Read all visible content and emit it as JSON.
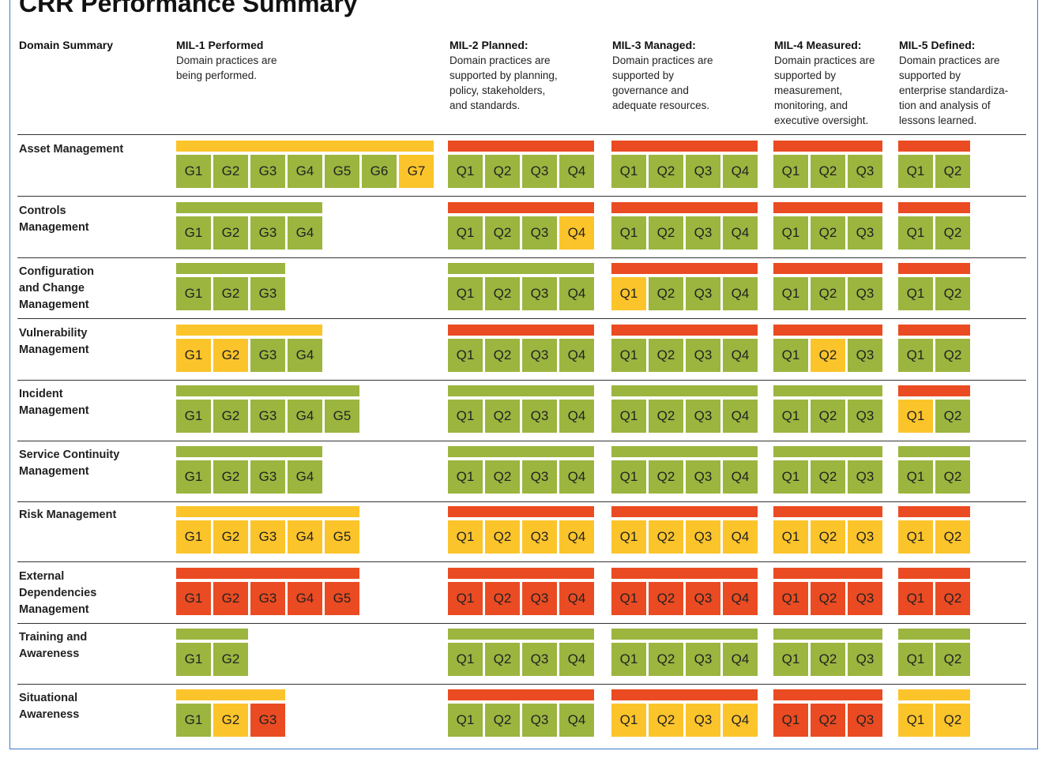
{
  "title": "CRR Performance Summary",
  "colors": {
    "green": "#9bb53f",
    "yellow": "#fcc42b",
    "red": "#ea4b22",
    "frame": "#3a7cc4"
  },
  "domain_header": "Domain Summary",
  "mil_headers": [
    {
      "title": "MIL-1 Performed",
      "desc": "Domain practices are\nbeing performed."
    },
    {
      "title": "MIL-2 Planned:",
      "desc": "Domain practices are\nsupported by planning,\npolicy, stakeholders,\nand standards."
    },
    {
      "title": "MIL-3 Managed:",
      "desc": "Domain practices are\nsupported by\ngovernance and\nadequate resources."
    },
    {
      "title": "MIL-4 Measured:",
      "desc": "Domain practices are\nsupported by\nmeasurement,\nmonitoring, and\nexecutive oversight."
    },
    {
      "title": "MIL-5 Defined:",
      "desc": "Domain practices  are\nsupported by\nenterprise standardiza-\ntion and analysis of\nlessons learned."
    }
  ],
  "domains": [
    {
      "name": "Asset Management",
      "mils": [
        {
          "bar": "yellow",
          "cells": [
            [
              "G1",
              "green"
            ],
            [
              "G2",
              "green"
            ],
            [
              "G3",
              "green"
            ],
            [
              "G4",
              "green"
            ],
            [
              "G5",
              "green"
            ],
            [
              "G6",
              "green"
            ],
            [
              "G7",
              "yellow"
            ]
          ]
        },
        {
          "bar": "red",
          "cells": [
            [
              "Q1",
              "green"
            ],
            [
              "Q2",
              "green"
            ],
            [
              "Q3",
              "green"
            ],
            [
              "Q4",
              "green"
            ]
          ]
        },
        {
          "bar": "red",
          "cells": [
            [
              "Q1",
              "green"
            ],
            [
              "Q2",
              "green"
            ],
            [
              "Q3",
              "green"
            ],
            [
              "Q4",
              "green"
            ]
          ]
        },
        {
          "bar": "red",
          "cells": [
            [
              "Q1",
              "green"
            ],
            [
              "Q2",
              "green"
            ],
            [
              "Q3",
              "green"
            ]
          ]
        },
        {
          "bar": "red",
          "cells": [
            [
              "Q1",
              "green"
            ],
            [
              "Q2",
              "green"
            ]
          ]
        }
      ]
    },
    {
      "name": "Controls\nManagement",
      "mils": [
        {
          "bar": "green",
          "cells": [
            [
              "G1",
              "green"
            ],
            [
              "G2",
              "green"
            ],
            [
              "G3",
              "green"
            ],
            [
              "G4",
              "green"
            ]
          ]
        },
        {
          "bar": "red",
          "cells": [
            [
              "Q1",
              "green"
            ],
            [
              "Q2",
              "green"
            ],
            [
              "Q3",
              "green"
            ],
            [
              "Q4",
              "yellow"
            ]
          ]
        },
        {
          "bar": "red",
          "cells": [
            [
              "Q1",
              "green"
            ],
            [
              "Q2",
              "green"
            ],
            [
              "Q3",
              "green"
            ],
            [
              "Q4",
              "green"
            ]
          ]
        },
        {
          "bar": "red",
          "cells": [
            [
              "Q1",
              "green"
            ],
            [
              "Q2",
              "green"
            ],
            [
              "Q3",
              "green"
            ]
          ]
        },
        {
          "bar": "red",
          "cells": [
            [
              "Q1",
              "green"
            ],
            [
              "Q2",
              "green"
            ]
          ]
        }
      ]
    },
    {
      "name": "Configuration\nand Change\nManagement",
      "mils": [
        {
          "bar": "green",
          "cells": [
            [
              "G1",
              "green"
            ],
            [
              "G2",
              "green"
            ],
            [
              "G3",
              "green"
            ]
          ]
        },
        {
          "bar": "green",
          "cells": [
            [
              "Q1",
              "green"
            ],
            [
              "Q2",
              "green"
            ],
            [
              "Q3",
              "green"
            ],
            [
              "Q4",
              "green"
            ]
          ]
        },
        {
          "bar": "red",
          "cells": [
            [
              "Q1",
              "yellow"
            ],
            [
              "Q2",
              "green"
            ],
            [
              "Q3",
              "green"
            ],
            [
              "Q4",
              "green"
            ]
          ]
        },
        {
          "bar": "red",
          "cells": [
            [
              "Q1",
              "green"
            ],
            [
              "Q2",
              "green"
            ],
            [
              "Q3",
              "green"
            ]
          ]
        },
        {
          "bar": "red",
          "cells": [
            [
              "Q1",
              "green"
            ],
            [
              "Q2",
              "green"
            ]
          ]
        }
      ]
    },
    {
      "name": "Vulnerability\nManagement",
      "mils": [
        {
          "bar": "yellow",
          "cells": [
            [
              "G1",
              "yellow"
            ],
            [
              "G2",
              "yellow"
            ],
            [
              "G3",
              "green"
            ],
            [
              "G4",
              "green"
            ]
          ]
        },
        {
          "bar": "red",
          "cells": [
            [
              "Q1",
              "green"
            ],
            [
              "Q2",
              "green"
            ],
            [
              "Q3",
              "green"
            ],
            [
              "Q4",
              "green"
            ]
          ]
        },
        {
          "bar": "red",
          "cells": [
            [
              "Q1",
              "green"
            ],
            [
              "Q2",
              "green"
            ],
            [
              "Q3",
              "green"
            ],
            [
              "Q4",
              "green"
            ]
          ]
        },
        {
          "bar": "red",
          "cells": [
            [
              "Q1",
              "green"
            ],
            [
              "Q2",
              "yellow"
            ],
            [
              "Q3",
              "green"
            ]
          ]
        },
        {
          "bar": "red",
          "cells": [
            [
              "Q1",
              "green"
            ],
            [
              "Q2",
              "green"
            ]
          ]
        }
      ]
    },
    {
      "name": "Incident\nManagement",
      "mils": [
        {
          "bar": "green",
          "cells": [
            [
              "G1",
              "green"
            ],
            [
              "G2",
              "green"
            ],
            [
              "G3",
              "green"
            ],
            [
              "G4",
              "green"
            ],
            [
              "G5",
              "green"
            ]
          ]
        },
        {
          "bar": "green",
          "cells": [
            [
              "Q1",
              "green"
            ],
            [
              "Q2",
              "green"
            ],
            [
              "Q3",
              "green"
            ],
            [
              "Q4",
              "green"
            ]
          ]
        },
        {
          "bar": "green",
          "cells": [
            [
              "Q1",
              "green"
            ],
            [
              "Q2",
              "green"
            ],
            [
              "Q3",
              "green"
            ],
            [
              "Q4",
              "green"
            ]
          ]
        },
        {
          "bar": "green",
          "cells": [
            [
              "Q1",
              "green"
            ],
            [
              "Q2",
              "green"
            ],
            [
              "Q3",
              "green"
            ]
          ]
        },
        {
          "bar": "red",
          "cells": [
            [
              "Q1",
              "yellow"
            ],
            [
              "Q2",
              "green"
            ]
          ]
        }
      ]
    },
    {
      "name": "Service Continuity\nManagement",
      "mils": [
        {
          "bar": "green",
          "cells": [
            [
              "G1",
              "green"
            ],
            [
              "G2",
              "green"
            ],
            [
              "G3",
              "green"
            ],
            [
              "G4",
              "green"
            ]
          ]
        },
        {
          "bar": "green",
          "cells": [
            [
              "Q1",
              "green"
            ],
            [
              "Q2",
              "green"
            ],
            [
              "Q3",
              "green"
            ],
            [
              "Q4",
              "green"
            ]
          ]
        },
        {
          "bar": "green",
          "cells": [
            [
              "Q1",
              "green"
            ],
            [
              "Q2",
              "green"
            ],
            [
              "Q3",
              "green"
            ],
            [
              "Q4",
              "green"
            ]
          ]
        },
        {
          "bar": "green",
          "cells": [
            [
              "Q1",
              "green"
            ],
            [
              "Q2",
              "green"
            ],
            [
              "Q3",
              "green"
            ]
          ]
        },
        {
          "bar": "green",
          "cells": [
            [
              "Q1",
              "green"
            ],
            [
              "Q2",
              "green"
            ]
          ]
        }
      ]
    },
    {
      "name": "Risk Management",
      "mils": [
        {
          "bar": "yellow",
          "cells": [
            [
              "G1",
              "yellow"
            ],
            [
              "G2",
              "yellow"
            ],
            [
              "G3",
              "yellow"
            ],
            [
              "G4",
              "yellow"
            ],
            [
              "G5",
              "yellow"
            ]
          ]
        },
        {
          "bar": "red",
          "cells": [
            [
              "Q1",
              "yellow"
            ],
            [
              "Q2",
              "yellow"
            ],
            [
              "Q3",
              "yellow"
            ],
            [
              "Q4",
              "yellow"
            ]
          ]
        },
        {
          "bar": "red",
          "cells": [
            [
              "Q1",
              "yellow"
            ],
            [
              "Q2",
              "yellow"
            ],
            [
              "Q3",
              "yellow"
            ],
            [
              "Q4",
              "yellow"
            ]
          ]
        },
        {
          "bar": "red",
          "cells": [
            [
              "Q1",
              "yellow"
            ],
            [
              "Q2",
              "yellow"
            ],
            [
              "Q3",
              "yellow"
            ]
          ]
        },
        {
          "bar": "red",
          "cells": [
            [
              "Q1",
              "yellow"
            ],
            [
              "Q2",
              "yellow"
            ]
          ]
        }
      ]
    },
    {
      "name": "External\nDependencies\nManagement",
      "mils": [
        {
          "bar": "red",
          "cells": [
            [
              "G1",
              "red"
            ],
            [
              "G2",
              "red"
            ],
            [
              "G3",
              "red"
            ],
            [
              "G4",
              "red"
            ],
            [
              "G5",
              "red"
            ]
          ]
        },
        {
          "bar": "red",
          "cells": [
            [
              "Q1",
              "red"
            ],
            [
              "Q2",
              "red"
            ],
            [
              "Q3",
              "red"
            ],
            [
              "Q4",
              "red"
            ]
          ]
        },
        {
          "bar": "red",
          "cells": [
            [
              "Q1",
              "red"
            ],
            [
              "Q2",
              "red"
            ],
            [
              "Q3",
              "red"
            ],
            [
              "Q4",
              "red"
            ]
          ]
        },
        {
          "bar": "red",
          "cells": [
            [
              "Q1",
              "red"
            ],
            [
              "Q2",
              "red"
            ],
            [
              "Q3",
              "red"
            ]
          ]
        },
        {
          "bar": "red",
          "cells": [
            [
              "Q1",
              "red"
            ],
            [
              "Q2",
              "red"
            ]
          ]
        }
      ]
    },
    {
      "name": "Training and\nAwareness",
      "mils": [
        {
          "bar": "green",
          "cells": [
            [
              "G1",
              "green"
            ],
            [
              "G2",
              "green"
            ]
          ]
        },
        {
          "bar": "green",
          "cells": [
            [
              "Q1",
              "green"
            ],
            [
              "Q2",
              "green"
            ],
            [
              "Q3",
              "green"
            ],
            [
              "Q4",
              "green"
            ]
          ]
        },
        {
          "bar": "green",
          "cells": [
            [
              "Q1",
              "green"
            ],
            [
              "Q2",
              "green"
            ],
            [
              "Q3",
              "green"
            ],
            [
              "Q4",
              "green"
            ]
          ]
        },
        {
          "bar": "green",
          "cells": [
            [
              "Q1",
              "green"
            ],
            [
              "Q2",
              "green"
            ],
            [
              "Q3",
              "green"
            ]
          ]
        },
        {
          "bar": "green",
          "cells": [
            [
              "Q1",
              "green"
            ],
            [
              "Q2",
              "green"
            ]
          ]
        }
      ]
    },
    {
      "name": "Situational\nAwareness",
      "mils": [
        {
          "bar": "yellow",
          "cells": [
            [
              "G1",
              "green"
            ],
            [
              "G2",
              "yellow"
            ],
            [
              "G3",
              "red"
            ]
          ]
        },
        {
          "bar": "red",
          "cells": [
            [
              "Q1",
              "green"
            ],
            [
              "Q2",
              "green"
            ],
            [
              "Q3",
              "green"
            ],
            [
              "Q4",
              "green"
            ]
          ]
        },
        {
          "bar": "red",
          "cells": [
            [
              "Q1",
              "yellow"
            ],
            [
              "Q2",
              "yellow"
            ],
            [
              "Q3",
              "yellow"
            ],
            [
              "Q4",
              "yellow"
            ]
          ]
        },
        {
          "bar": "red",
          "cells": [
            [
              "Q1",
              "red"
            ],
            [
              "Q2",
              "red"
            ],
            [
              "Q3",
              "red"
            ]
          ]
        },
        {
          "bar": "yellow",
          "cells": [
            [
              "Q1",
              "yellow"
            ],
            [
              "Q2",
              "yellow"
            ]
          ]
        }
      ]
    }
  ]
}
